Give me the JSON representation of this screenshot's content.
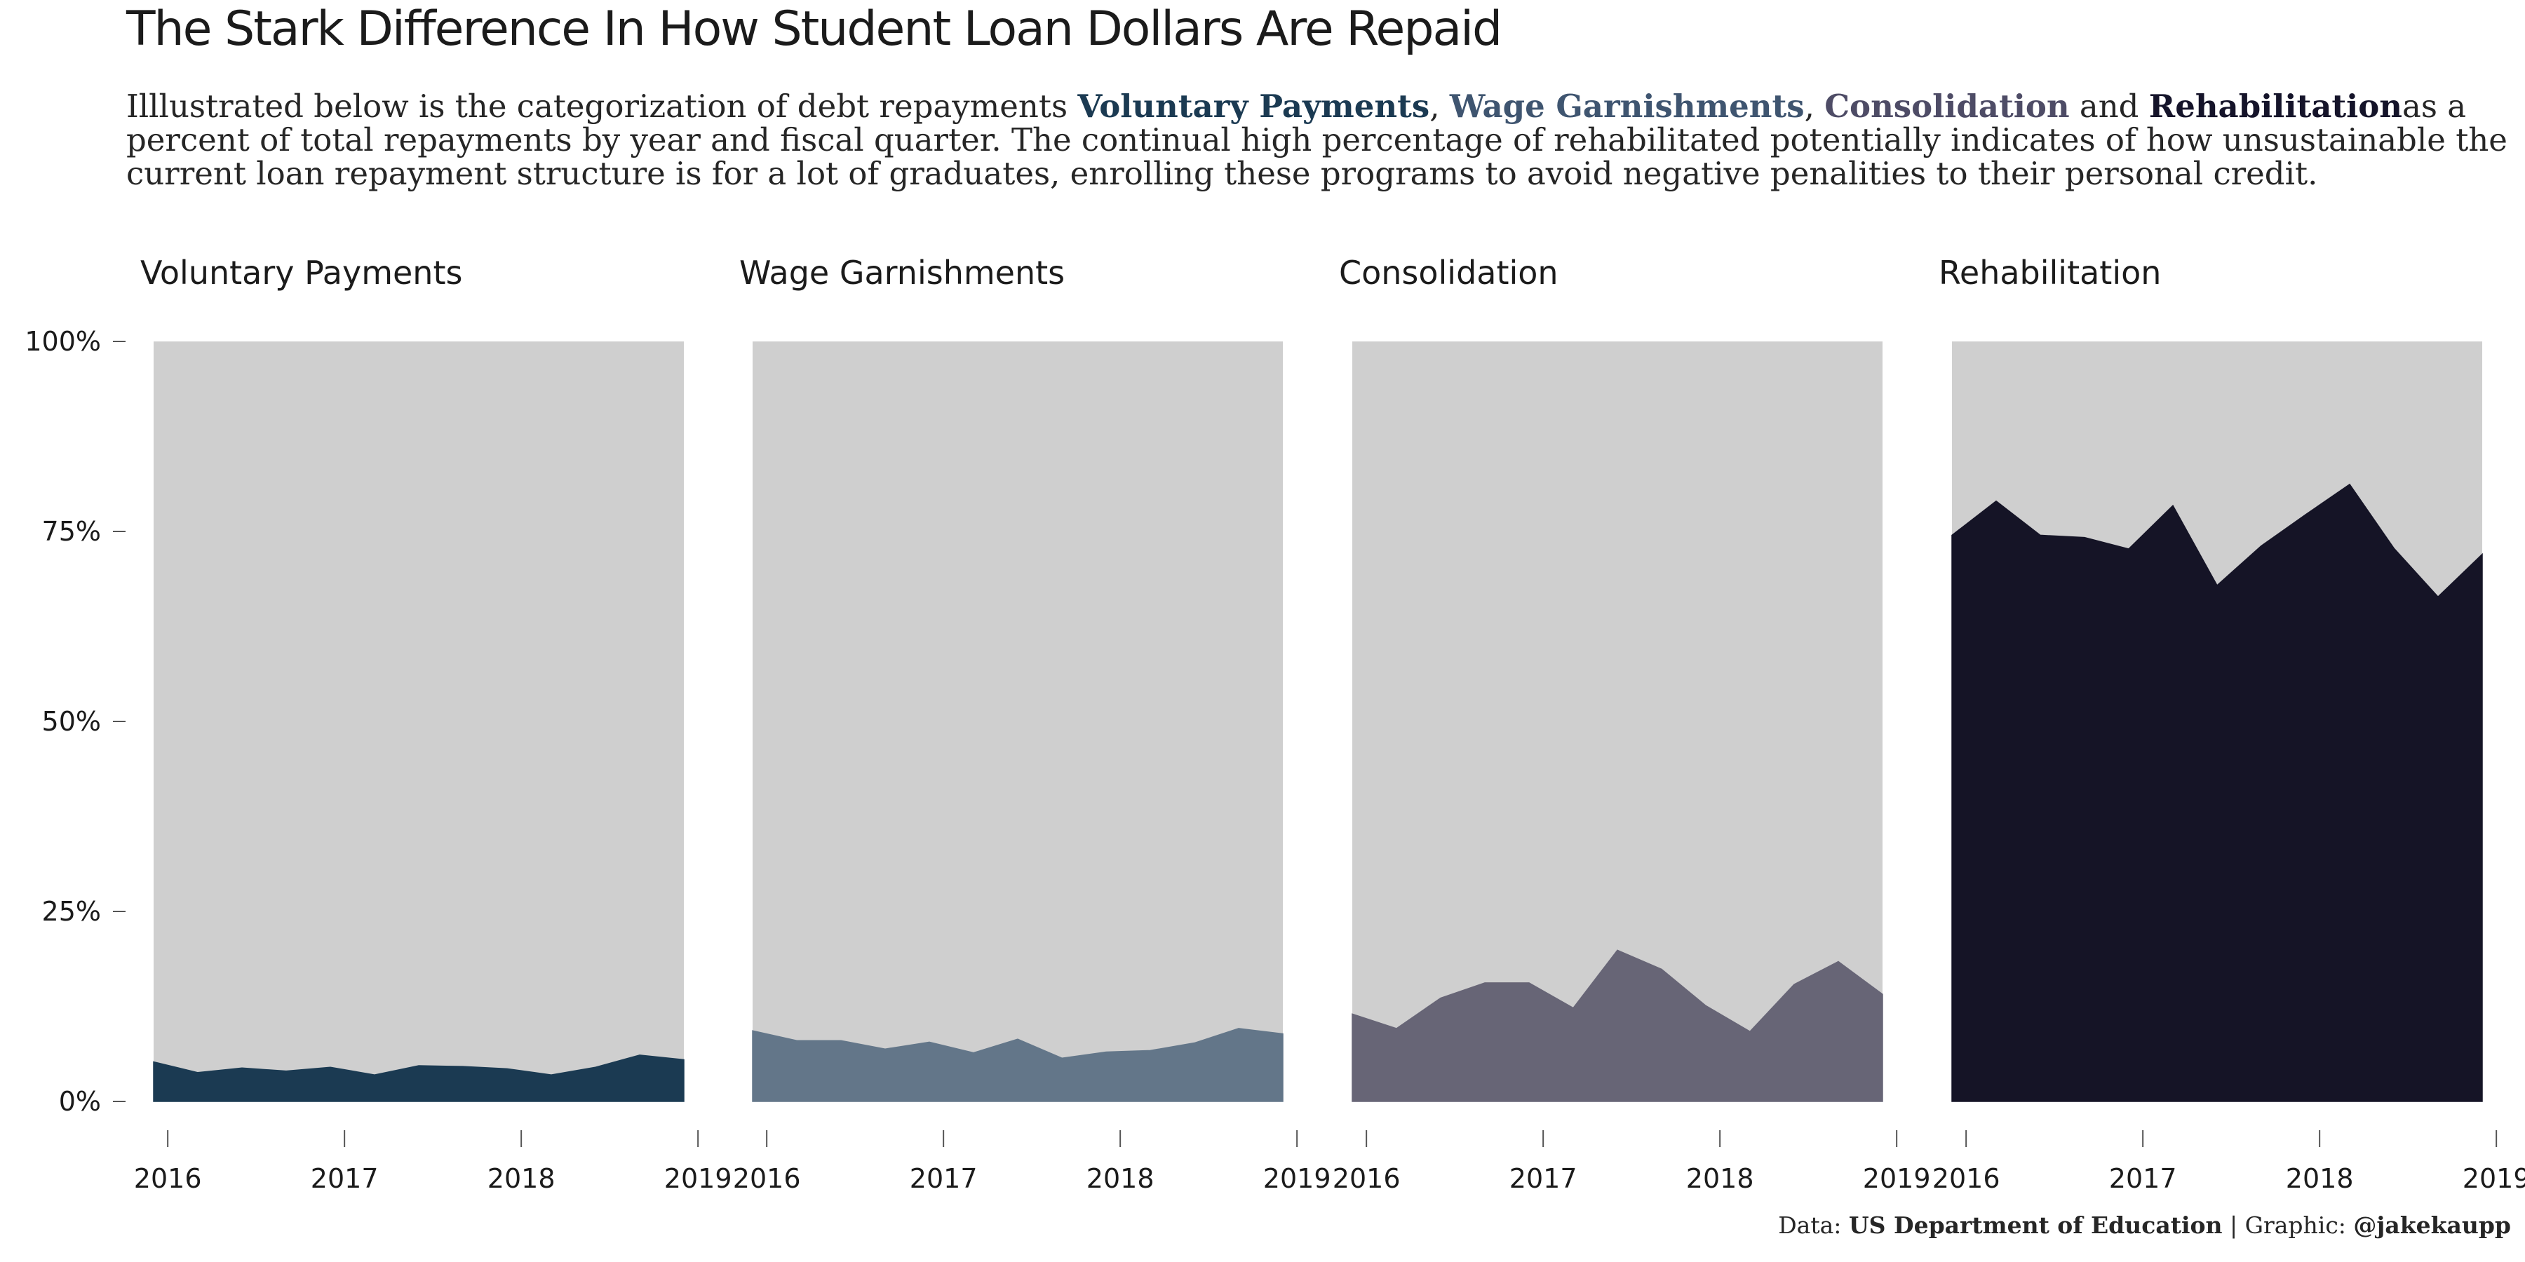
{
  "header": {
    "title": "The Stark Difference In How Student Loan Dollars Are Repaid",
    "subtitle_prefix": "Illlustrated below is the categorization of debt repayments ",
    "hl1": "Voluntary Payments",
    "sep1": ", ",
    "hl2": "Wage Garnishments",
    "sep2": ", ",
    "hl3": "Consolidation",
    "sep3": " and ",
    "hl4": "Rehabilitation",
    "subtitle_suffix": "as a percent of total repayments by year and fiscal quarter. The continual high percentage of rehabilitated potentially indicates of how unsustainable the current loan repayment structure is for a lot of graduates, enrolling these programs to avoid negative penalities to their personal credit."
  },
  "caption": {
    "data_label": "Data: ",
    "data_source": "US Department of Education",
    "separator": " | Graphic: ",
    "author": "@jakekaupp"
  },
  "colors": {
    "background_area": "#cfcfcf",
    "voluntary": "#1b3a52",
    "wage": "#637689",
    "consolidation": "#676576",
    "rehabilitation": "#151426"
  },
  "chart_data": {
    "type": "area",
    "y_ticks": [
      "0%",
      "25%",
      "50%",
      "75%",
      "100%"
    ],
    "y_tick_values": [
      0,
      25,
      50,
      75,
      100
    ],
    "ylim": [
      0,
      100
    ],
    "x_ticks": [
      "2016",
      "2017",
      "2018",
      "2019"
    ],
    "x_tick_values": [
      2016,
      2017,
      2018,
      2019
    ],
    "xlim": [
      2015.92,
      2018.92
    ],
    "x": [
      2015.92,
      2016.17,
      2016.42,
      2016.67,
      2016.92,
      2017.17,
      2017.42,
      2017.67,
      2017.92,
      2018.17,
      2018.42,
      2018.67,
      2018.92
    ],
    "series": [
      {
        "name": "Voluntary Payments",
        "values": [
          5.2,
          3.8,
          4.4,
          4.0,
          4.5,
          3.5,
          4.7,
          4.6,
          4.3,
          3.5,
          4.5,
          6.1,
          5.5
        ]
      },
      {
        "name": "Wage Garnishments",
        "values": [
          9.3,
          8.0,
          8.0,
          6.9,
          7.8,
          6.4,
          8.2,
          5.7,
          6.5,
          6.7,
          7.7,
          9.6,
          8.9
        ]
      },
      {
        "name": "Consolidation",
        "values": [
          11.5,
          9.6,
          13.6,
          15.6,
          15.6,
          12.3,
          19.9,
          17.4,
          12.6,
          9.2,
          15.4,
          18.4,
          14.1
        ]
      },
      {
        "name": "Rehabilitation",
        "values": [
          74.5,
          79.0,
          74.5,
          74.2,
          72.7,
          78.4,
          67.9,
          73.1,
          77.2,
          81.2,
          72.8,
          66.4,
          72.0
        ]
      }
    ]
  }
}
